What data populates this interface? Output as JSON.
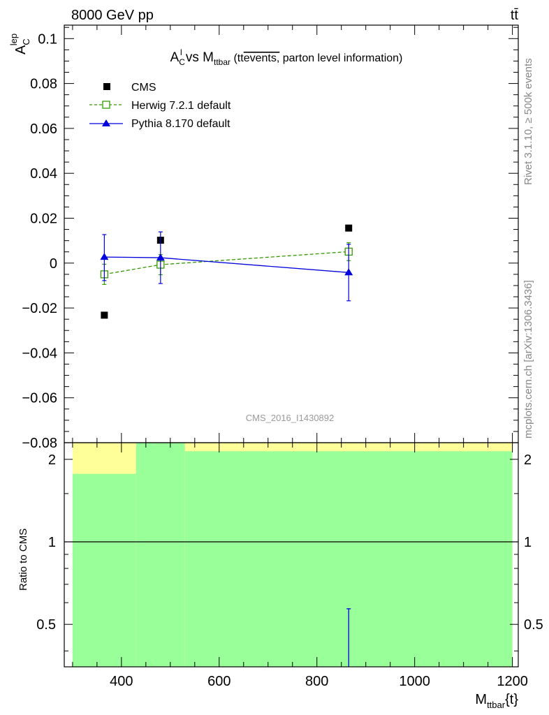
{
  "header": {
    "left": "8000 GeV pp",
    "right": "tt̄"
  },
  "side_text": {
    "upper": "Rivet 3.1.10, ≥ 500k events",
    "lower": "mcplots.cern.ch [arXiv:1306.3436]"
  },
  "chart_data": [
    {
      "type": "scatter",
      "title_parts": {
        "a": "A",
        "a_sup": "l",
        "a_sub": "C",
        "vs": " vs M",
        "m_sub": "ttbar",
        "paren_open": " (tt",
        "overline": "events,",
        "rest": " parton level information)"
      },
      "ylabel": {
        "main": "A",
        "sup": "lep",
        "sub": "C"
      },
      "ylim": [
        -0.08,
        0.106
      ],
      "xlim": [
        283,
        1212
      ],
      "y_ticks": [
        "0.1",
        "0.08",
        "0.06",
        "0.04",
        "0.02",
        "0",
        "−0.02",
        "−0.04",
        "−0.06",
        "−0.08"
      ],
      "y_tick_values": [
        0.1,
        0.08,
        0.06,
        0.04,
        0.02,
        0,
        -0.02,
        -0.04,
        -0.06,
        -0.08
      ],
      "watermark": "CMS_2016_I1430892",
      "legend_position": "top-left",
      "series": [
        {
          "name": "CMS",
          "marker": "filled-square",
          "color": "#000000",
          "points": [
            {
              "x": 365,
              "y": -0.0232
            },
            {
              "x": 480,
              "y": 0.0102
            },
            {
              "x": 865,
              "y": 0.0156
            }
          ]
        },
        {
          "name": "Herwig 7.2.1 default",
          "marker": "open-square",
          "line": "dashed",
          "color": "#339900",
          "points": [
            {
              "x": 365,
              "y": -0.005,
              "err_lo": 0.0045,
              "err_hi": 0.0045
            },
            {
              "x": 480,
              "y": -0.0007,
              "err_lo": 0.0045,
              "err_hi": 0.0045
            },
            {
              "x": 865,
              "y": 0.0051,
              "err_lo": 0.004,
              "err_hi": 0.004
            }
          ]
        },
        {
          "name": "Pythia 8.170 default",
          "marker": "filled-triangle",
          "line": "solid",
          "color": "#0000dd",
          "points": [
            {
              "x": 365,
              "y": 0.0027,
              "err_lo": 0.0105,
              "err_hi": 0.01
            },
            {
              "x": 480,
              "y": 0.0024,
              "err_lo": 0.0115,
              "err_hi": 0.0115
            },
            {
              "x": 865,
              "y": -0.0042,
              "err_lo": 0.0126,
              "err_hi": 0.0126
            }
          ]
        }
      ]
    },
    {
      "type": "area",
      "ylabel": "Ratio to CMS",
      "xlabel": {
        "main": "M",
        "sub": "ttbar",
        "rest": "{t}"
      },
      "ylim": [
        0.35,
        2.3
      ],
      "y_log": true,
      "y_ticks": [
        "2",
        "1",
        "0.5"
      ],
      "y_tick_values": [
        2,
        1,
        0.5
      ],
      "x_ticks": [
        "400",
        "600",
        "800",
        "1000",
        "1200"
      ],
      "x_tick_values": [
        400,
        600,
        800,
        1000,
        1200
      ],
      "reference_line": 1,
      "bands": [
        {
          "x0": 300,
          "x1": 430,
          "yellow_lo": 0.35,
          "yellow_hi": 2.3,
          "green_lo": 0.35,
          "green_hi": 1.77
        },
        {
          "x0": 430,
          "x1": 530,
          "yellow_lo": 0.35,
          "yellow_hi": 2.3,
          "green_lo": 0.35,
          "green_hi": 2.3
        },
        {
          "x0": 530,
          "x1": 1200,
          "yellow_lo": 0.35,
          "yellow_hi": 2.3,
          "green_lo": 0.35,
          "green_hi": 2.14
        }
      ],
      "ratio_errorbars": [
        {
          "x": 865,
          "lo": 0.35,
          "hi": 0.57,
          "color": "#0000dd"
        }
      ],
      "colors": {
        "yellow": "#ffff99",
        "green": "#99ff99"
      }
    }
  ]
}
